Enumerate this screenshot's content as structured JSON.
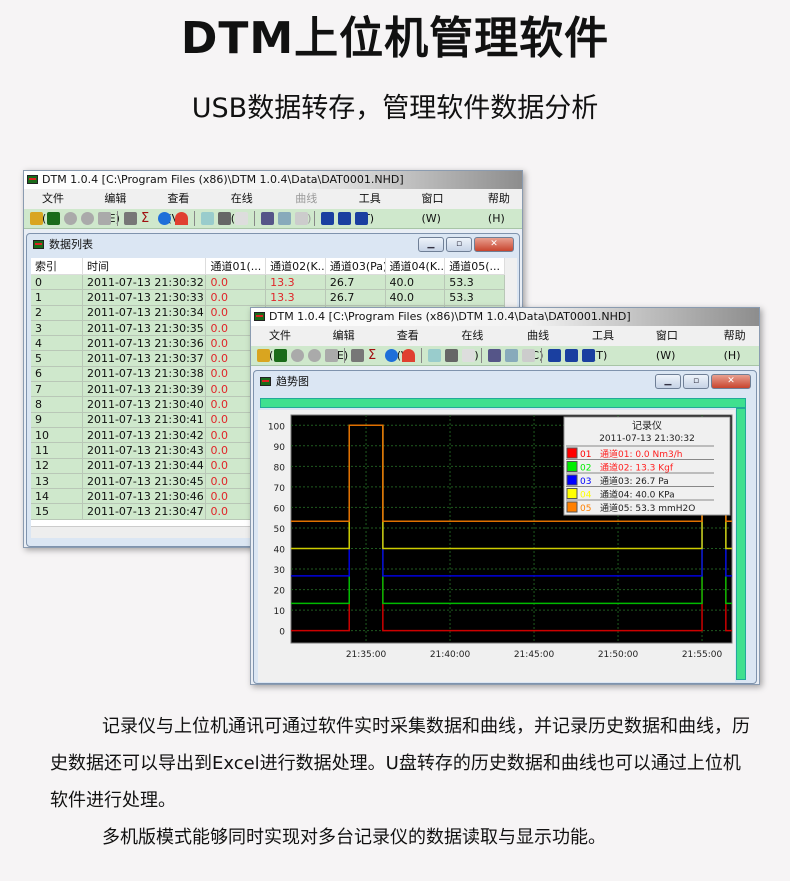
{
  "title": "DTM上位机管理软件",
  "subtitle": "USB数据转存，管理软件数据分析",
  "app_title": "DTM 1.0.4 [C:\\Program Files (x86)\\DTM 1.0.4\\Data\\DAT0001.NHD]",
  "menu": [
    {
      "label": "文件(F)"
    },
    {
      "label": "编辑(E)"
    },
    {
      "label": "查看(V)"
    },
    {
      "label": "在线(O)"
    },
    {
      "label": "曲线(C)"
    },
    {
      "label": "工具(T)"
    },
    {
      "label": "窗口(W)"
    },
    {
      "label": "帮助(H)"
    }
  ],
  "toolbar_icons": [
    "open-folder-icon",
    "chart-icon",
    "record-icon",
    "record-icon",
    "stop-icon",
    "grid-icon",
    "sigma-icon",
    "info-icon",
    "gauge-icon",
    "export-icon",
    "print-icon",
    "print-preview-icon",
    "copy-icon",
    "zoom-in-icon",
    "zoom-out-icon",
    "cascade-icon",
    "tile-horizontal-icon",
    "tile-vertical-icon"
  ],
  "data_window": {
    "title": "数据列表",
    "columns": [
      "索引",
      "时间",
      "通道01(...",
      "通道02(K...",
      "通道03(Pa)",
      "通道04(K...",
      "通道05(..."
    ],
    "rows": [
      [
        "0",
        "2011-07-13 21:30:32",
        "0.0",
        "13.3",
        "26.7",
        "40.0",
        "53.3"
      ],
      [
        "1",
        "2011-07-13 21:30:33",
        "0.0",
        "13.3",
        "26.7",
        "40.0",
        "53.3"
      ],
      [
        "2",
        "2011-07-13 21:30:34",
        "0.0"
      ],
      [
        "3",
        "2011-07-13 21:30:35",
        "0.0"
      ],
      [
        "4",
        "2011-07-13 21:30:36",
        "0.0"
      ],
      [
        "5",
        "2011-07-13 21:30:37",
        "0.0"
      ],
      [
        "6",
        "2011-07-13 21:30:38",
        "0.0"
      ],
      [
        "7",
        "2011-07-13 21:30:39",
        "0.0"
      ],
      [
        "8",
        "2011-07-13 21:30:40",
        "0.0"
      ],
      [
        "9",
        "2011-07-13 21:30:41",
        "0.0"
      ],
      [
        "10",
        "2011-07-13 21:30:42",
        "0.0"
      ],
      [
        "11",
        "2011-07-13 21:30:43",
        "0.0"
      ],
      [
        "12",
        "2011-07-13 21:30:44",
        "0.0"
      ],
      [
        "13",
        "2011-07-13 21:30:45",
        "0.0"
      ],
      [
        "14",
        "2011-07-13 21:30:46",
        "0.0"
      ],
      [
        "15",
        "2011-07-13 21:30:47",
        "0.0"
      ]
    ]
  },
  "trend_window": {
    "title": "趋势图"
  },
  "chart_data": {
    "type": "line",
    "step": true,
    "xlim": [
      "21:30:32",
      "21:56:47"
    ],
    "ylim": [
      -6,
      105
    ],
    "x_ticks": [
      "21:35:00",
      "21:40:00",
      "21:45:00",
      "21:50:00",
      "21:55:00"
    ],
    "y_ticks": [
      0,
      10,
      20,
      30,
      40,
      50,
      60,
      70,
      80,
      90,
      100
    ],
    "grid": true,
    "background": "#000000",
    "legend": {
      "placement": "top-right",
      "title": "记录仪",
      "time": "2011-07-13 21:30:32",
      "entries": [
        {
          "id": "01",
          "text": "通道01: 0.0 Nm3/h",
          "text_color": "#ff2020"
        },
        {
          "id": "02",
          "text": "通道02: 13.3 Kgf",
          "text_color": "#ff2020"
        },
        {
          "id": "03",
          "text": "通道03: 26.7 Pa",
          "text_color": "#222222"
        },
        {
          "id": "04",
          "text": "通道04: 40.0 KPa",
          "text_color": "#222222"
        },
        {
          "id": "05",
          "text": "通道05: 53.3 mmH2O",
          "text_color": "#222222"
        }
      ]
    },
    "series": [
      {
        "name": "01",
        "color": "#ff0000",
        "line_color": "#cc0000",
        "points": [
          [
            "21:30:32",
            0
          ],
          [
            "21:34:00",
            100
          ],
          [
            "21:36:00",
            0
          ],
          [
            "21:55:00",
            100
          ],
          [
            "21:56:25",
            0
          ],
          [
            "21:56:47",
            0
          ]
        ]
      },
      {
        "name": "02",
        "color": "#00ee00",
        "line_color": "#00bb00",
        "points": [
          [
            "21:30:32",
            13.3
          ],
          [
            "21:34:00",
            100
          ],
          [
            "21:36:00",
            13.3
          ],
          [
            "21:55:00",
            100
          ],
          [
            "21:56:25",
            13.3
          ],
          [
            "21:56:47",
            13.3
          ]
        ]
      },
      {
        "name": "03",
        "color": "#0000ff",
        "line_color": "#0000dd",
        "points": [
          [
            "21:30:32",
            26.7
          ],
          [
            "21:34:00",
            100
          ],
          [
            "21:36:00",
            26.7
          ],
          [
            "21:55:00",
            100
          ],
          [
            "21:56:25",
            26.7
          ],
          [
            "21:56:47",
            26.7
          ]
        ]
      },
      {
        "name": "04",
        "color": "#ffff00",
        "line_color": "#cccc00",
        "points": [
          [
            "21:30:32",
            40
          ],
          [
            "21:34:00",
            100
          ],
          [
            "21:36:00",
            40
          ],
          [
            "21:55:00",
            100
          ],
          [
            "21:56:25",
            40
          ],
          [
            "21:56:47",
            40
          ]
        ]
      },
      {
        "name": "05",
        "color": "#ff8000",
        "line_color": "#e07000",
        "points": [
          [
            "21:30:32",
            53.3
          ],
          [
            "21:34:00",
            100
          ],
          [
            "21:36:00",
            53.3
          ],
          [
            "21:55:00",
            100
          ],
          [
            "21:56:25",
            53.3
          ],
          [
            "21:56:47",
            53.3
          ]
        ]
      }
    ]
  },
  "paragraphs": [
    "记录仪与上位机通讯可通过软件实时采集数据和曲线，并记录历史数据和曲线，历史数据还可以导出到Excel进行数据处理。U盘转存的历史数据和曲线也可以通过上位机软件进行处理。",
    "多机版模式能够同时实现对多台记录仪的数据读取与显示功能。"
  ]
}
